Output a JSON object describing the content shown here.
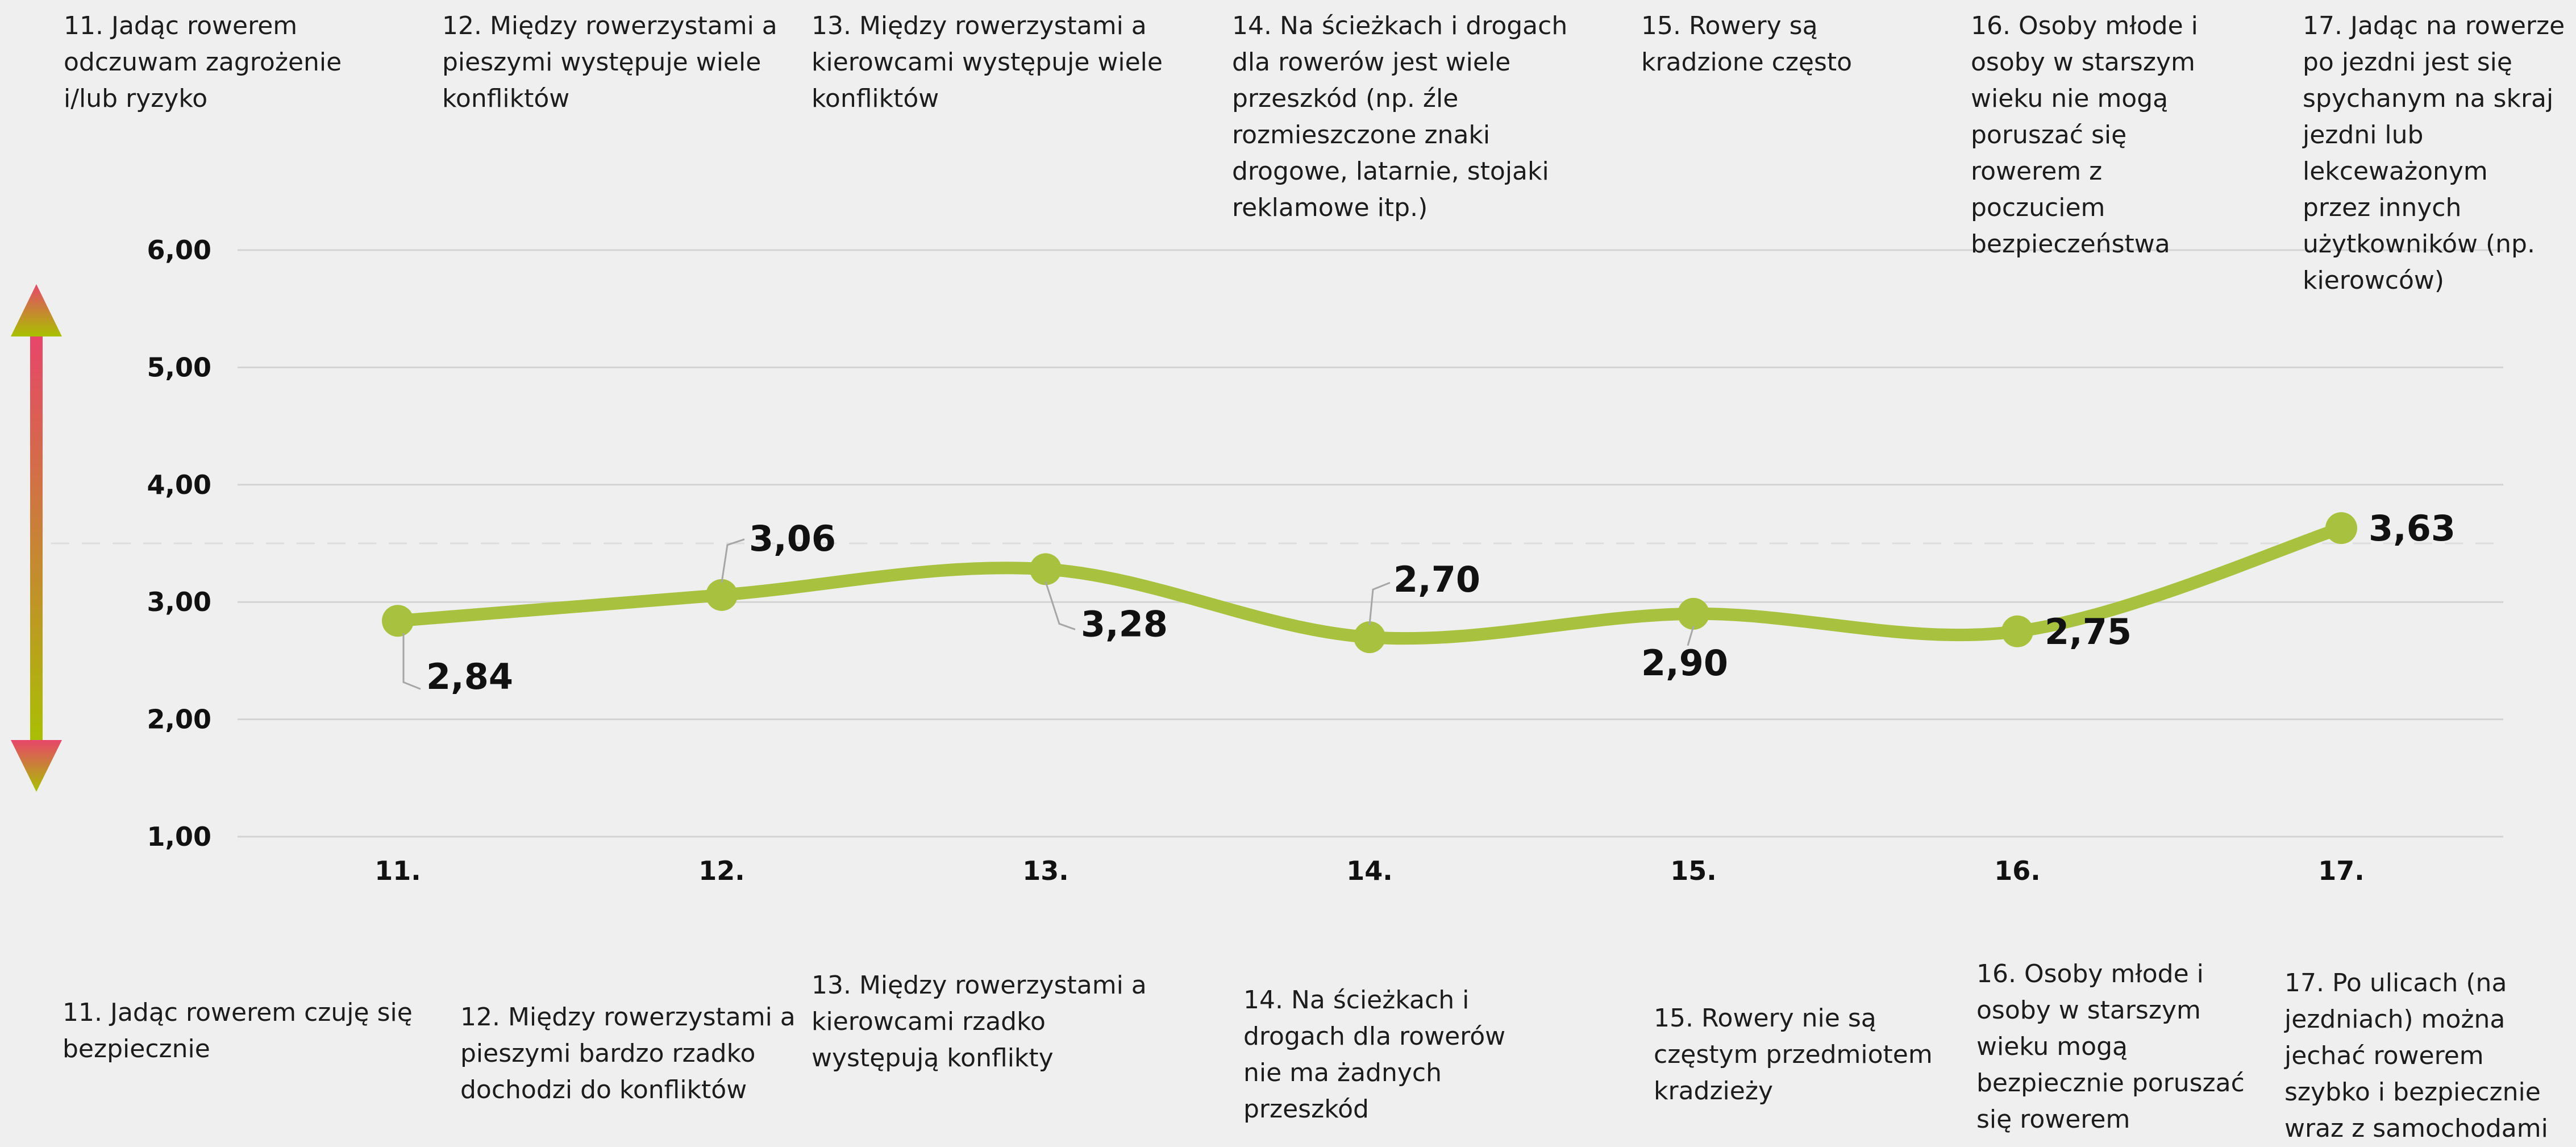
{
  "chart_data": {
    "type": "line",
    "categories": [
      "11.",
      "12.",
      "13.",
      "14.",
      "15.",
      "16.",
      "17."
    ],
    "series": [
      {
        "values": [
          2.84,
          3.06,
          3.28,
          2.7,
          2.9,
          2.75,
          3.63
        ]
      }
    ],
    "value_labels": [
      "2,84",
      "3,06",
      "3,28",
      "2,70",
      "2,90",
      "2,75",
      "3,63"
    ],
    "y_ticks": [
      "1,00",
      "2,00",
      "3,00",
      "4,00",
      "5,00",
      "6,00"
    ],
    "ylim": [
      1,
      6
    ],
    "reference_line": 3.5,
    "grid": true,
    "line_color": "#a8c23f",
    "arrow_colors": [
      "#e8456a",
      "#a8c200"
    ],
    "statements_top": [
      "11. Jadąc rowerem\nodczuwam zagrożenie\ni/lub ryzyko",
      "12. Między rowerzystami a\npieszymi występuje wiele\nkonfliktów",
      "13. Między rowerzystami a\nkierowcami występuje wiele\nkonfliktów",
      "14. Na ścieżkach i drogach\ndla rowerów jest wiele\nprzeszkód (np. źle\nrozmieszczone znaki\ndrogowe, latarnie, stojaki\nreklamowe itp.)",
      "15. Rowery są\nkradzione często",
      "16. Osoby młode i\nosoby w starszym\nwieku nie mogą\nporuszać się\nrowerem z\npoczuciem\nbezpieczeństwa",
      "17. Jadąc na rowerze\npo jezdni jest się\nspychanym na skraj\njezdni lub\nlekceważonym\nprzez innych\nużytkowników (np.\nkierowców)"
    ],
    "statements_bottom": [
      "11. Jadąc rowerem czuję się\nbezpiecznie",
      "12. Między rowerzystami a\npieszymi bardzo rzadko\ndochodzi do konfliktów",
      "13. Między rowerzystami a\nkierowcami rzadko\nwystępują konflikty",
      "14. Na ścieżkach i\ndrogach dla rowerów\nnie ma żadnych\nprzeszkód",
      "15. Rowery nie są\nczęstym przedmiotem\nkradzieży",
      "16. Osoby młode i\nosoby w starszym\nwieku mogą\nbezpiecznie poruszać\nsię rowerem",
      "17. Po ulicach (na\njezdniach) można\njechać rowerem\nszybko i bezpiecznie\nwraz z samochodami"
    ]
  }
}
